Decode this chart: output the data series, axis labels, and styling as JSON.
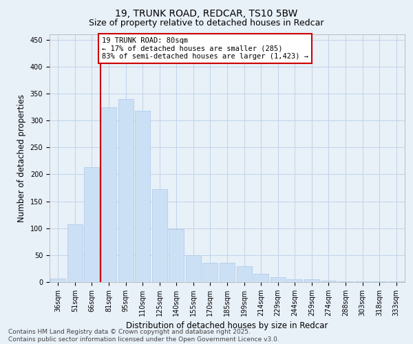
{
  "title_line1": "19, TRUNK ROAD, REDCAR, TS10 5BW",
  "title_line2": "Size of property relative to detached houses in Redcar",
  "xlabel": "Distribution of detached houses by size in Redcar",
  "ylabel": "Number of detached properties",
  "categories": [
    "36sqm",
    "51sqm",
    "66sqm",
    "81sqm",
    "95sqm",
    "110sqm",
    "125sqm",
    "140sqm",
    "155sqm",
    "170sqm",
    "185sqm",
    "199sqm",
    "214sqm",
    "229sqm",
    "244sqm",
    "259sqm",
    "274sqm",
    "288sqm",
    "303sqm",
    "318sqm",
    "333sqm"
  ],
  "values": [
    6,
    107,
    213,
    325,
    340,
    318,
    172,
    99,
    50,
    36,
    36,
    29,
    15,
    9,
    5,
    5,
    2,
    1,
    1,
    1,
    1
  ],
  "bar_color": "#cce0f5",
  "bar_edge_color": "#a8c8e8",
  "grid_color": "#c0d4e8",
  "background_color": "#e8f0f8",
  "vline_color": "#cc0000",
  "vline_x": 2.5,
  "annotation_text": "19 TRUNK ROAD: 80sqm\n← 17% of detached houses are smaller (285)\n83% of semi-detached houses are larger (1,423) →",
  "annotation_box_color": "#ffffff",
  "annotation_box_edge_color": "#cc0000",
  "ylim": [
    0,
    460
  ],
  "yticks": [
    0,
    50,
    100,
    150,
    200,
    250,
    300,
    350,
    400,
    450
  ],
  "footer_line1": "Contains HM Land Registry data © Crown copyright and database right 2025.",
  "footer_line2": "Contains public sector information licensed under the Open Government Licence v3.0.",
  "title_fontsize": 10,
  "subtitle_fontsize": 9,
  "axis_label_fontsize": 8.5,
  "tick_fontsize": 7,
  "footer_fontsize": 6.5,
  "annotation_fontsize": 7.5
}
